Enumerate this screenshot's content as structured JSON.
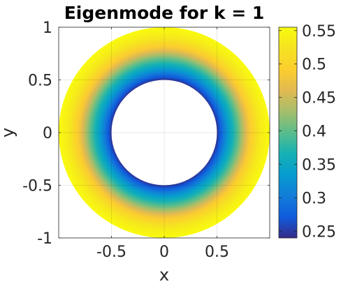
{
  "chart_data": {
    "type": "heatmap",
    "title": "Eigenmode for k = 1",
    "xlabel": "x",
    "ylabel": "y",
    "xlim": [
      -1,
      1
    ],
    "ylim": [
      -1,
      1
    ],
    "x_ticks": [
      -0.5,
      0,
      0.5
    ],
    "x_tick_labels": [
      "-0.5",
      "0",
      "0.5"
    ],
    "y_ticks": [
      1,
      0.5,
      0,
      -0.5,
      -1
    ],
    "y_tick_labels": [
      "1",
      "0.5",
      "0",
      "-0.5",
      "-1"
    ],
    "grid": true,
    "domain": {
      "shape": "annulus",
      "inner_radius": 0.5,
      "outer_radius": 1.0
    },
    "field_profile": {
      "r": [
        0.5,
        0.6,
        0.7,
        0.8,
        0.9,
        1.0
      ],
      "value": [
        0.245,
        0.33,
        0.4,
        0.48,
        0.53,
        0.555
      ]
    },
    "colorbar": {
      "colormap": "parula",
      "limits": [
        0.24,
        0.555
      ],
      "ticks": [
        0.25,
        0.3,
        0.35,
        0.4,
        0.45,
        0.5,
        0.55
      ],
      "tick_labels": [
        "0.25",
        "0.3",
        "0.35",
        "0.4",
        "0.45",
        "0.5",
        "0.55"
      ],
      "location": "right"
    }
  }
}
